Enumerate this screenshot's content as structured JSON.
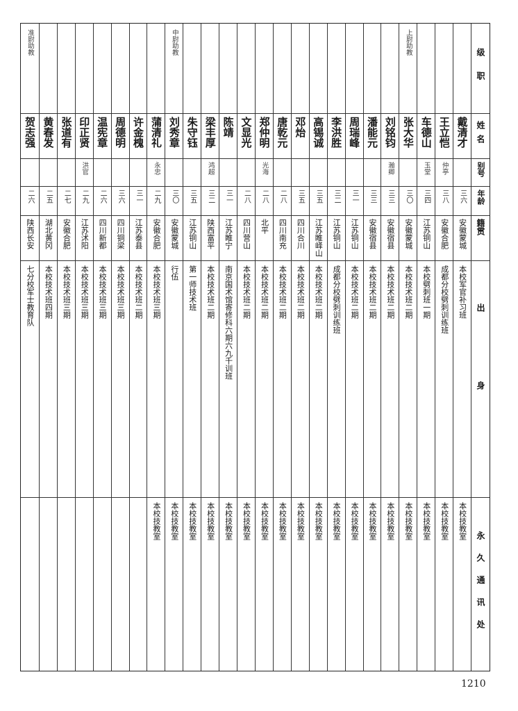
{
  "headers": {
    "grade": "级职",
    "name": "姓名",
    "alias": "别号",
    "age": "年龄",
    "native": "籍贯",
    "origin": "出身",
    "address": "永久通讯处"
  },
  "rows": [
    {
      "grade": "",
      "name": "戴清才",
      "alias": "",
      "age": "三六",
      "native": "安徽蒙城",
      "origin": "本校军官补习班",
      "address": "本校技教室"
    },
    {
      "grade": "",
      "name": "王立恺",
      "alias": "仲亭",
      "age": "三八",
      "native": "安徽合肥",
      "origin": "成都分校劈刺训练班",
      "address": "本校技教室"
    },
    {
      "grade": "",
      "name": "车德山",
      "alias": "玉堂",
      "age": "三四",
      "native": "江苏铜山",
      "origin": "本校劈刺班一期",
      "address": "本校技教室"
    },
    {
      "grade": "上尉助教",
      "name": "张大华",
      "alias": "",
      "age": "三〇",
      "native": "安徽蒙城",
      "origin": "本校技术班二期",
      "address": "本校技教室"
    },
    {
      "grade": "",
      "name": "刘铭钧",
      "alias": "瀚卿",
      "age": "三三",
      "native": "安徽宿县",
      "origin": "本校技术班二期",
      "address": "本校技教室"
    },
    {
      "grade": "",
      "name": "潘能元",
      "alias": "",
      "age": "三三",
      "native": "安徽宿县",
      "origin": "本校技术班二期",
      "address": "本校技教室"
    },
    {
      "grade": "",
      "name": "周瑞峰",
      "alias": "",
      "age": "三一",
      "native": "江苏铜山",
      "origin": "本校技术班二期",
      "address": "本校技教室"
    },
    {
      "grade": "",
      "name": "李洪胜",
      "alias": "",
      "age": "三二",
      "native": "江苏铜山",
      "origin": "成都分校劈刺训练班",
      "address": "本校技教室"
    },
    {
      "grade": "",
      "name": "高锡诚",
      "alias": "",
      "age": "三五",
      "native": "江苏睢峄山",
      "origin": "本校技术班二期",
      "address": "本校技教室"
    },
    {
      "grade": "",
      "name": "邓炲",
      "alias": "",
      "age": "三五",
      "native": "四川合川",
      "origin": "本校技术班二期",
      "address": "本校技教室"
    },
    {
      "grade": "",
      "name": "唐乾元",
      "alias": "",
      "age": "二八",
      "native": "四川南充",
      "origin": "本校技术班二期",
      "address": "本校技教室"
    },
    {
      "grade": "",
      "name": "郑仲明",
      "alias": "光海",
      "age": "二八",
      "native": "北平",
      "origin": "本校技术班二期",
      "address": "本校技教室"
    },
    {
      "grade": "",
      "name": "文显光",
      "alias": "",
      "age": "二八",
      "native": "四川营山",
      "origin": "本校技术班二期",
      "address": "本校技教室"
    },
    {
      "grade": "",
      "name": "陈靖",
      "alias": "",
      "age": "三一",
      "native": "江苏睢宁",
      "origin": "南京国术馆寄修科六期六九千训班",
      "address": "本校技教室"
    },
    {
      "grade": "",
      "name": "梁丰厚",
      "alias": "鸿超",
      "age": "三二",
      "native": "陕西富平",
      "origin": "本校技术班二期",
      "address": "本校技教室"
    },
    {
      "grade": "",
      "name": "朱守钰",
      "alias": "",
      "age": "三五",
      "native": "江苏铜山",
      "origin": "第一师技术班",
      "address": "本校技教室"
    },
    {
      "grade": "中尉助教",
      "name": "刘秀章",
      "alias": "",
      "age": "三〇",
      "native": "安徽蒙城",
      "origin": "行伍",
      "address": "本校技教室"
    },
    {
      "grade": "",
      "name": "蒲清礼",
      "alias": "永忠",
      "age": "二九",
      "native": "安徽合肥",
      "origin": "本校技术班三期",
      "address": "本校技教室"
    },
    {
      "grade": "",
      "name": "许金槐",
      "alias": "",
      "age": "三一",
      "native": "江苏泰县",
      "origin": "本校技术班二期",
      "address": ""
    },
    {
      "grade": "",
      "name": "周德明",
      "alias": "",
      "age": "三六",
      "native": "四川铜梁",
      "origin": "本校技术班三期",
      "address": ""
    },
    {
      "grade": "",
      "name": "温宪章",
      "alias": "",
      "age": "二六",
      "native": "四川新都",
      "origin": "本校技术班三期",
      "address": ""
    },
    {
      "grade": "",
      "name": "印正贤",
      "alias": "洪官",
      "age": "二九",
      "native": "江苏沭阳",
      "origin": "本校技术班三期",
      "address": ""
    },
    {
      "grade": "",
      "name": "张道有",
      "alias": "",
      "age": "二七",
      "native": "安徽合肥",
      "origin": "本校技术班三期",
      "address": ""
    },
    {
      "grade": "",
      "name": "黄春发",
      "alias": "",
      "age": "二五",
      "native": "湖北黄冈",
      "origin": "本校技术班四期",
      "address": ""
    },
    {
      "grade": "准尉助教",
      "name": "贺志强",
      "alias": "",
      "age": "二六",
      "native": "陕西长安",
      "origin": "七分校军士教育队",
      "address": ""
    }
  ],
  "page_number": "1210"
}
